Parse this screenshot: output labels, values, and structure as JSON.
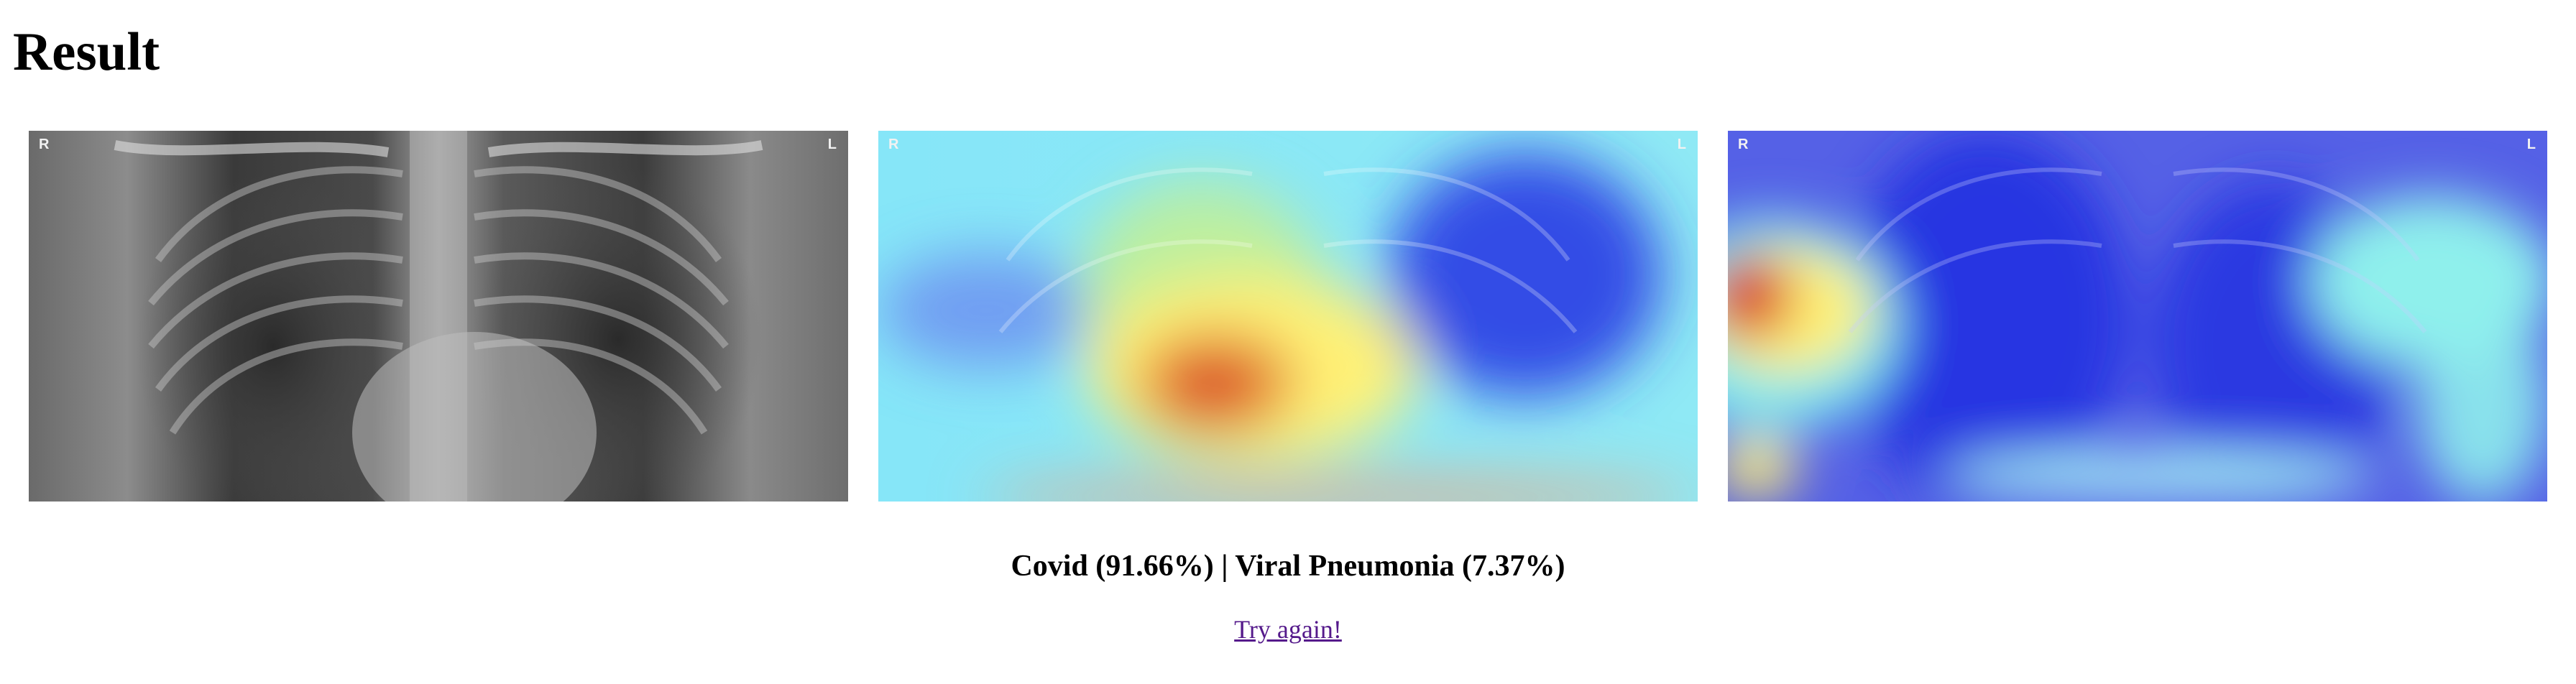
{
  "page": {
    "title": "Result"
  },
  "images": [
    {
      "name": "original-xray",
      "marker_left": "R",
      "marker_right": "L"
    },
    {
      "name": "heatmap-overlay-1",
      "marker_left": "R",
      "marker_right": "L"
    },
    {
      "name": "heatmap-overlay-2",
      "marker_left": "R",
      "marker_right": "L"
    }
  ],
  "result": {
    "text": "Covid (91.66%) | Viral Pneumonia (7.37%)"
  },
  "actions": {
    "try_again_label": "Try again!"
  },
  "colors": {
    "link": "#551a8b",
    "heat_hot": "#d8392a",
    "heat_warm": "#fff176",
    "heat_mid": "#7ee7f5",
    "heat_cold": "#1f2fe0"
  }
}
